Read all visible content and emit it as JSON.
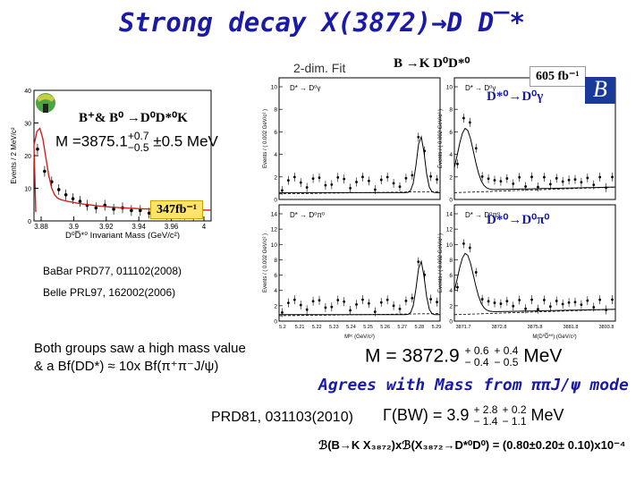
{
  "title": "Strong decay X(3872)→D D̅*",
  "labels": {
    "two_dim_fit": "2-dim. Fit",
    "b_to_k_dd": "B →K D⁰D*⁰",
    "lumi_belle": "605 fb⁻¹",
    "dstar_gamma": "D*⁰→D⁰γ",
    "dstar_pi0": "D*⁰→D⁰π⁰",
    "b_plus_b0": "B⁺& B⁰ →D⁰D*⁰K",
    "mass_babar_prefix": "M =3875.1",
    "mass_babar_up": "+0.7",
    "mass_babar_down": "−0.5",
    "mass_babar_suffix": "±0.5 MeV",
    "lumi_babar": "347fb⁻¹",
    "ref_babar": "BaBar PRD77, 011102(2008)",
    "ref_belle": "Belle PRL97, 162002(2006)",
    "both_groups_1": "Both groups saw a high mass value",
    "both_groups_2": "& a Bf(DD*) ≈ 10x Bf(π⁺π⁻J/ψ)",
    "mass_new_prefix": "M = 3872.9",
    "mass_new_up1": "+ 0.6",
    "mass_new_down1": "− 0.4",
    "mass_new_up2": "+ 0.4",
    "mass_new_down2": "− 0.5",
    "mass_new_unit": "MeV",
    "agrees": "Agrees with Mass from ππJ/ψ mode",
    "prd81": "PRD81, 031103(2010)",
    "gamma_prefix": "Γ(BW) = 3.9",
    "gamma_up1": "+ 2.8",
    "gamma_down1": "− 1.4",
    "gamma_up2": "+ 0.2",
    "gamma_down2": "− 1.1",
    "gamma_unit": "MeV",
    "bf_line": "ℬ(B→K X₃₈₇₂)xℬ(X₃₈₇₂→D*⁰D⁰) = (0.80±0.20± 0.10)x10⁻⁴"
  },
  "left_plot": {
    "ylabel": "Events / 2 MeV/c²",
    "xlabel": "D⁰D̅*⁰ Invariant Mass (GeV/c²)",
    "xticks": [
      "3.88",
      "3.9",
      "3.92",
      "3.94",
      "3.96",
      "4"
    ],
    "yticks": [
      "0",
      "10",
      "20",
      "30",
      "40"
    ]
  },
  "right_plots": {
    "panels": [
      {
        "ylabel": "Events / ( 0.002 GeV/c² )",
        "label": "D* → D⁰γ",
        "yticks": [
          "0",
          "2",
          "4",
          "6",
          "8",
          "10"
        ]
      },
      {
        "ylabel": "Events / ( 0.002 GeV/c² )",
        "label": "D* → D⁰γ",
        "yticks": [
          "0",
          "2",
          "4",
          "6",
          "8",
          "10"
        ]
      },
      {
        "ylabel": "Events / ( 0.002 GeV/c² )",
        "label": "D* → D⁰π⁰",
        "yticks": [
          "0",
          "2",
          "4",
          "6",
          "8",
          "10",
          "12",
          "14"
        ]
      },
      {
        "ylabel": "Events / ( 0.002 GeV/c² )",
        "label": "D* → D⁰π⁰",
        "yticks": [
          "0",
          "2",
          "4",
          "6",
          "8",
          "10",
          "12",
          "14"
        ]
      }
    ],
    "xlabel_left": "Mᵇᶜ (GeV/c²)",
    "xlabel_right": "M(D⁰D̅*⁰) (GeV/c²)",
    "xticks_left": [
      "5.2",
      "5.21",
      "5.22",
      "5.23",
      "5.24",
      "5.25",
      "5.26",
      "5.27",
      "5.28",
      "5.29"
    ],
    "xticks_right": [
      "3871.7",
      "3872.8",
      "3875.8",
      "3881.8",
      "3893.8"
    ]
  },
  "colors": {
    "title": "#1a1aa6",
    "blue_text": "#1a1aa6",
    "red_line": "#cc2222",
    "belle_blue": "#1a3a9a"
  }
}
